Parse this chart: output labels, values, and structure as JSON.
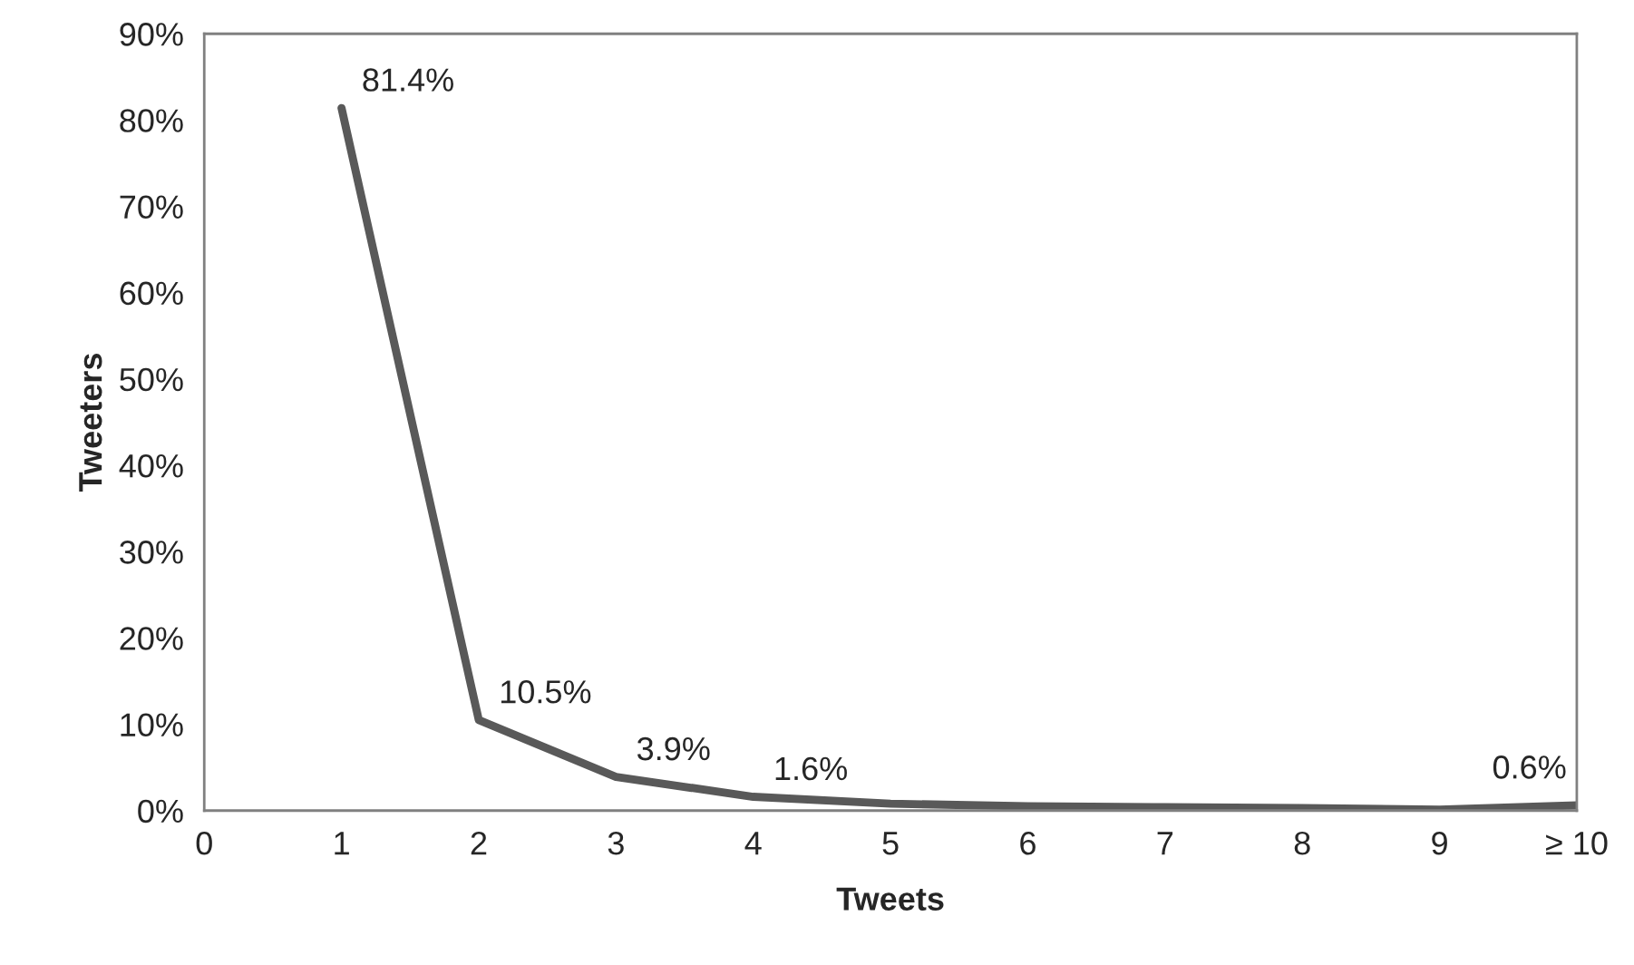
{
  "chart_data": {
    "type": "line",
    "xlabel": "Tweets",
    "ylabel": "Tweeters",
    "x": [
      1,
      2,
      3,
      4,
      5,
      6,
      7,
      8,
      9,
      10
    ],
    "series": [
      {
        "color": "#595959",
        "values": [
          81.4,
          10.5,
          3.9,
          1.6,
          0.8,
          0.5,
          0.4,
          0.3,
          0.1,
          0.6
        ],
        "value_labels": [
          "81.4%",
          "10.5%",
          "3.9%",
          "1.6%",
          null,
          null,
          null,
          null,
          null,
          "0.6%"
        ]
      }
    ],
    "xlim": [
      0,
      10
    ],
    "xticks": [
      0,
      1,
      2,
      3,
      4,
      5,
      6,
      7,
      8,
      9,
      {
        "value": 10,
        "label": "≥ 10"
      }
    ],
    "ylim": [
      0,
      90
    ],
    "yticks": [
      {
        "value": 0,
        "label": "0%"
      },
      {
        "value": 10,
        "label": "10%"
      },
      {
        "value": 20,
        "label": "20%"
      },
      {
        "value": 30,
        "label": "30%"
      },
      {
        "value": 40,
        "label": "40%"
      },
      {
        "value": 50,
        "label": "50%"
      },
      {
        "value": 60,
        "label": "60%"
      },
      {
        "value": 70,
        "label": "70%"
      },
      {
        "value": 80,
        "label": "80%"
      },
      {
        "value": 90,
        "label": "90%"
      }
    ],
    "grid": false,
    "legend": false,
    "marker": "none",
    "line_style": "solid"
  }
}
